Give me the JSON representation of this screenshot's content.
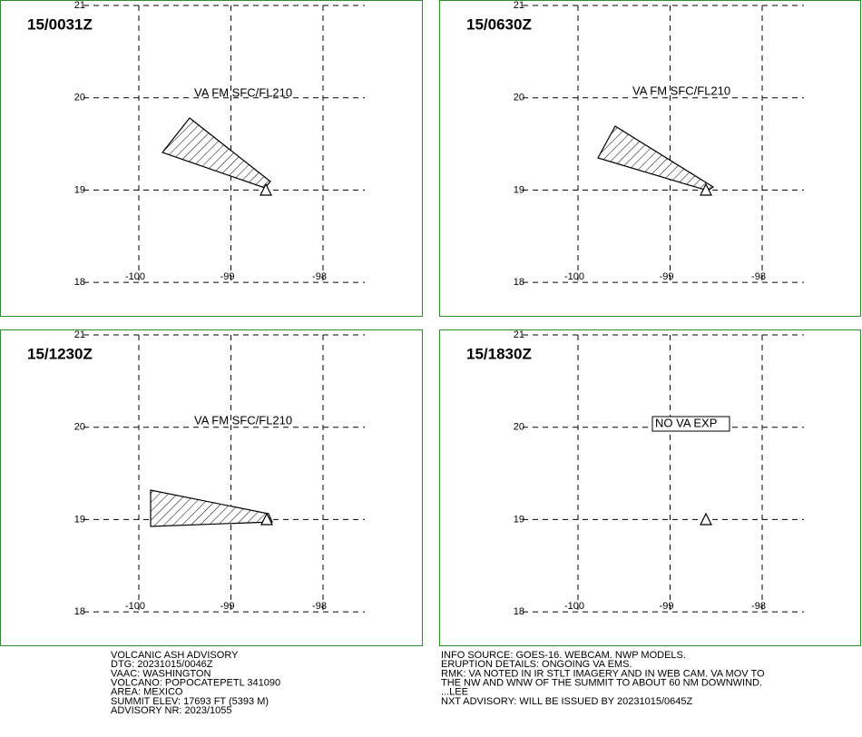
{
  "panels": [
    {
      "time": "15/0031Z",
      "label": "VA FM SFC/FL210",
      "lat_ticks": [
        21,
        20,
        19,
        18
      ],
      "lon_ticks": [
        -100,
        -99,
        -98
      ]
    },
    {
      "time": "15/0630Z",
      "label": "VA FM SFC/FL210",
      "lat_ticks": [
        21,
        20,
        19,
        18
      ],
      "lon_ticks": [
        -100,
        -99,
        -98
      ]
    },
    {
      "time": "15/1230Z",
      "label": "VA FM SFC/FL210",
      "lat_ticks": [
        21,
        20,
        19,
        18
      ],
      "lon_ticks": [
        -100,
        -99,
        -98
      ]
    },
    {
      "time": "15/1830Z",
      "label": "NO VA EXP",
      "lat_ticks": [
        21,
        20,
        19,
        18
      ],
      "lon_ticks": [
        -100,
        -99,
        -98
      ]
    }
  ],
  "footer": {
    "left": [
      "VOLCANIC ASH ADVISORY",
      "DTG: 20231015/0046Z",
      "VAAC: WASHINGTON",
      "VOLCANO: POPOCATEPETL 341090",
      "AREA: MEXICO",
      "SUMMIT ELEV: 17693 FT (5393 M)",
      "ADVISORY NR: 2023/1055"
    ],
    "right": [
      "INFO SOURCE: GOES-16. WEBCAM. NWP MODELS.",
      "ERUPTION DETAILS: ONGOING VA EMS.",
      "RMK: VA NOTED IN IR STLT IMAGERY AND IN WEB CAM. VA MOV TO",
      "THE NW AND WNW OF THE SUMMIT TO ABOUT 60 NM DOWNWIND.",
      "...LEE",
      "NXT ADVISORY: WILL BE ISSUED BY 20231015/0645Z"
    ]
  }
}
